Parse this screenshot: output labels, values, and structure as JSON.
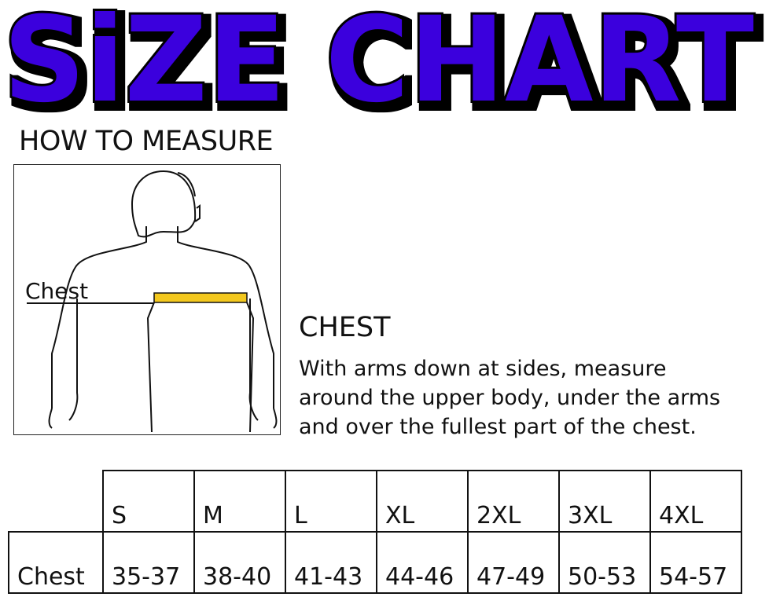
{
  "title": "SiZE CHART",
  "colors": {
    "title_fill": "#3a00dd",
    "title_outline": "#000000",
    "tape": "#f3c81e"
  },
  "how_to_measure": "HOW TO MEASURE",
  "figure": {
    "chest_label": "Chest"
  },
  "chest_section": {
    "heading": "CHEST",
    "lines": [
      "With arms down at sides, measure",
      "around the upper body, under the arms",
      "and over the fullest part of the chest."
    ]
  },
  "table": {
    "sizes": [
      "S",
      "M",
      "L",
      "XL",
      "2XL",
      "3XL",
      "4XL"
    ],
    "row_label": "Chest",
    "values": [
      "35-37",
      "38-40",
      "41-43",
      "44-46",
      "47-49",
      "50-53",
      "54-57"
    ]
  }
}
